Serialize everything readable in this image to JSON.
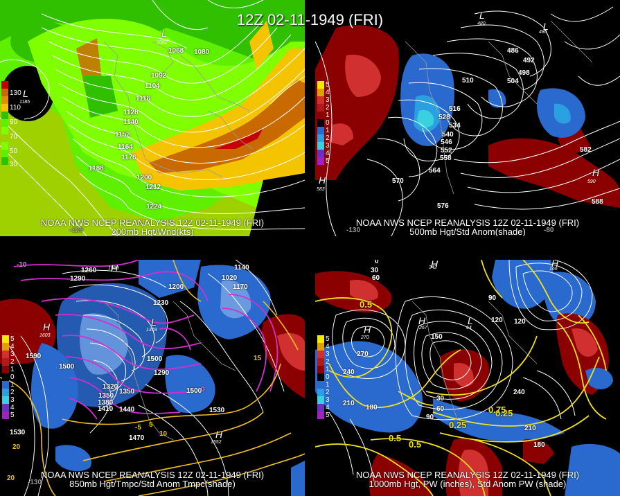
{
  "title": "12Z 02-11-1949 (FRI)",
  "colors": {
    "wind_scale": [
      "#c40000",
      "#c96a00",
      "#f5c400",
      "#30c000",
      "#5ef000",
      "#7fff00",
      "#9fd000"
    ],
    "anom_warm": [
      "#f2ea00",
      "#e0a000",
      "#d03030",
      "#b01a1a",
      "#8b0000"
    ],
    "anom_cold": [
      "#2a6acf",
      "#2aa0e0",
      "#39d0e0",
      "#6a30c0",
      "#a020c0"
    ],
    "contour": "#ffffff",
    "temp_contour": "#d030d0",
    "pw_contour": "#f0e020"
  },
  "panels": [
    {
      "id": "p200",
      "caption_line1": "NOAA NWS NCEP REANALYSIS 12Z 02-11-1949 (FRI)",
      "caption_line2": "200mb Hgt/Wnd(kts)",
      "legend": [
        "130",
        "110",
        "90",
        "70",
        "50",
        "30"
      ],
      "contour_labels": [
        "1068",
        "1080",
        "1092",
        "1104",
        "1116",
        "1128",
        "1140",
        "1152",
        "1164",
        "1176",
        "1188",
        "1200",
        "1212",
        "1224"
      ],
      "centers": [
        {
          "sym": "L",
          "val": "1062"
        },
        {
          "sym": "L",
          "val": "1185"
        }
      ],
      "lon_labels": [
        "-120"
      ]
    },
    {
      "id": "p500",
      "caption_line1": "NOAA NWS NCEP REANALYSIS 12Z 02-11-1949 (FRI)",
      "caption_line2": "500mb Hgt/Std Anom(shade)",
      "legend": [
        "5",
        "4",
        "3",
        "2",
        "1",
        "0",
        "1",
        "2",
        "3",
        "4",
        "5"
      ],
      "contour_labels": [
        "486",
        "492",
        "498",
        "504",
        "510",
        "516",
        "528",
        "534",
        "540",
        "546",
        "552",
        "558",
        "564",
        "570",
        "576",
        "582",
        "588"
      ],
      "centers": [
        {
          "sym": "L",
          "val": "480"
        },
        {
          "sym": "L",
          "val": "486"
        },
        {
          "sym": "H",
          "val": "583"
        },
        {
          "sym": "H",
          "val": "590"
        }
      ],
      "lon_labels": [
        "-130",
        "-80"
      ]
    },
    {
      "id": "p850",
      "caption_line1": "NOAA NWS NCEP REANALYSIS 12Z 02-11-1949 (FRI)",
      "caption_line2": "850mb Hgt/Tmpc/Std Anom Tmpc(shade)",
      "legend": [
        "5",
        "4",
        "3",
        "2",
        "1",
        "0",
        "1",
        "2",
        "3",
        "4",
        "5"
      ],
      "contour_labels": [
        "1260",
        "1290",
        "1230",
        "1200",
        "1290",
        "1590",
        "1500",
        "1320",
        "1350",
        "1380",
        "1410",
        "1440",
        "1470",
        "1500",
        "1530",
        "1530",
        "1140",
        "1020",
        "1170",
        "1500",
        "1350"
      ],
      "temp_labels": [
        "-10",
        "-5",
        "0",
        "5",
        "10",
        "15",
        "20",
        "20"
      ],
      "centers": [
        {
          "sym": "H",
          "val": "1603"
        },
        {
          "sym": "H",
          "val": "1552"
        },
        {
          "sym": "L",
          "val": "1318"
        },
        {
          "sym": "H",
          "val": "1529"
        }
      ],
      "lon_labels": [
        "-130"
      ]
    },
    {
      "id": "p1000",
      "caption_line1": "NOAA NWS NCEP REANALYSIS 12Z 02-11-1949 (FRI)",
      "caption_line2": "1000mb Hgt, PW (inches), Std Anom PW (shade)",
      "legend": [
        "5",
        "4",
        "3",
        "2",
        "1",
        "0",
        "1",
        "2",
        "3",
        "4",
        "5"
      ],
      "contour_labels": [
        "0",
        "30",
        "60",
        "90",
        "120",
        "150",
        "180",
        "210",
        "240",
        "270",
        "30",
        "60",
        "90",
        "120",
        "180",
        "210",
        "240"
      ],
      "pw_labels": [
        "0.5",
        "0.25",
        "0.5",
        "0.25",
        "0.75",
        "0.5"
      ],
      "centers": [
        {
          "sym": "H",
          "val": "270"
        },
        {
          "sym": "H",
          "val": "342"
        },
        {
          "sym": "H",
          "val": "267"
        },
        {
          "sym": "L",
          "val": "64"
        },
        {
          "sym": "H",
          "val": "166"
        }
      ],
      "lon_labels": []
    }
  ]
}
